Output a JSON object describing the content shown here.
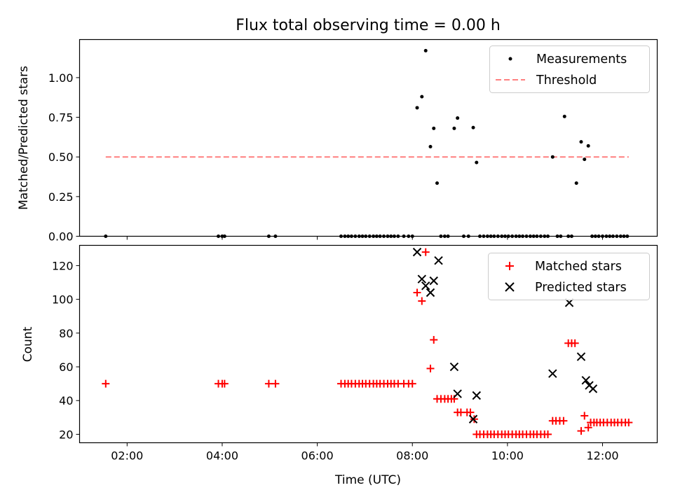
{
  "title": "Flux total observing time = 0.00 h",
  "chart_data": [
    {
      "type": "scatter",
      "ylabel": "Matched/Predicted stars",
      "ylim": [
        0,
        1.24
      ],
      "yticks": [
        0.0,
        0.25,
        0.5,
        0.75,
        1.0
      ],
      "ytick_labels": [
        "0.00",
        "0.25",
        "0.50",
        "0.75",
        "1.00"
      ],
      "xlim": [
        1.0,
        13.15
      ],
      "xticks": [
        2,
        4,
        6,
        8,
        10,
        12
      ],
      "threshold": {
        "name": "Threshold",
        "value": 0.5,
        "x_range": [
          1.55,
          12.55
        ],
        "color": "#ff7f7f"
      },
      "series": [
        {
          "name": "Measurements",
          "color": "#000000",
          "marker": "dot",
          "x": [
            1.55,
            3.92,
            4.0,
            4.05,
            4.98,
            5.12,
            6.5,
            6.58,
            6.65,
            6.72,
            6.8,
            6.88,
            6.95,
            7.02,
            7.1,
            7.18,
            7.25,
            7.32,
            7.4,
            7.48,
            7.55,
            7.62,
            7.7,
            7.82,
            7.92,
            8.0,
            8.1,
            8.2,
            8.28,
            8.38,
            8.45,
            8.52,
            8.6,
            8.68,
            8.75,
            8.88,
            8.95,
            9.08,
            9.18,
            9.28,
            9.35,
            9.42,
            9.5,
            9.58,
            9.65,
            9.72,
            9.8,
            9.88,
            9.95,
            10.02,
            10.1,
            10.18,
            10.25,
            10.32,
            10.4,
            10.48,
            10.55,
            10.62,
            10.7,
            10.78,
            10.85,
            10.95,
            11.05,
            11.12,
            11.2,
            11.28,
            11.35,
            11.45,
            11.55,
            11.62,
            11.7,
            11.78,
            11.85,
            11.92,
            12.0,
            12.08,
            12.15,
            12.22,
            12.3,
            12.38,
            12.45,
            12.52
          ],
          "y": [
            0,
            0,
            0,
            0,
            0,
            0,
            0,
            0,
            0,
            0,
            0,
            0,
            0,
            0,
            0,
            0,
            0,
            0,
            0,
            0,
            0,
            0,
            0,
            0,
            0,
            0,
            0.81,
            0.88,
            1.17,
            0.565,
            0.68,
            0.335,
            0,
            0,
            0,
            0.68,
            0.745,
            0,
            0,
            0.685,
            0.465,
            0,
            0,
            0,
            0,
            0,
            0,
            0,
            0,
            0,
            0,
            0,
            0,
            0,
            0,
            0,
            0,
            0,
            0,
            0,
            0,
            0.5,
            0,
            0,
            0.755,
            0,
            0,
            0.335,
            0.595,
            0.485,
            0.57,
            0,
            0,
            0,
            0,
            0,
            0,
            0,
            0,
            0,
            0,
            0
          ]
        }
      ]
    },
    {
      "type": "scatter",
      "ylabel": "Count",
      "xlabel": "Time (UTC)",
      "ylim": [
        15,
        132
      ],
      "yticks": [
        20,
        40,
        60,
        80,
        100,
        120
      ],
      "xlim": [
        1.0,
        13.15
      ],
      "xticks": [
        2,
        4,
        6,
        8,
        10,
        12
      ],
      "xtick_labels": [
        "02:00",
        "04:00",
        "06:00",
        "08:00",
        "10:00",
        "12:00"
      ],
      "series": [
        {
          "name": "Matched stars",
          "color": "#ff0000",
          "marker": "plus",
          "x": [
            1.55,
            3.92,
            4.0,
            4.05,
            4.98,
            5.12,
            6.5,
            6.58,
            6.65,
            6.72,
            6.8,
            6.88,
            6.95,
            7.02,
            7.1,
            7.18,
            7.25,
            7.32,
            7.4,
            7.48,
            7.55,
            7.62,
            7.7,
            7.82,
            7.92,
            8.0,
            8.1,
            8.2,
            8.28,
            8.38,
            8.45,
            8.52,
            8.6,
            8.68,
            8.75,
            8.82,
            8.88,
            8.95,
            9.02,
            9.15,
            9.22,
            9.3,
            9.35,
            9.42,
            9.5,
            9.58,
            9.65,
            9.72,
            9.8,
            9.88,
            9.95,
            10.02,
            10.1,
            10.18,
            10.25,
            10.32,
            10.4,
            10.48,
            10.55,
            10.62,
            10.7,
            10.78,
            10.85,
            10.95,
            11.02,
            11.1,
            11.18,
            11.28,
            11.35,
            11.42,
            11.55,
            11.62,
            11.7,
            11.75,
            11.82,
            11.88,
            11.95,
            12.02,
            12.1,
            12.18,
            12.25,
            12.32,
            12.4,
            12.48,
            12.55
          ],
          "y": [
            50,
            50,
            50,
            50,
            50,
            50,
            50,
            50,
            50,
            50,
            50,
            50,
            50,
            50,
            50,
            50,
            50,
            50,
            50,
            50,
            50,
            50,
            50,
            50,
            50,
            50,
            104,
            99,
            128,
            59,
            76,
            41,
            41,
            41,
            41,
            41,
            41,
            33,
            33,
            33,
            33,
            29,
            20,
            20,
            20,
            20,
            20,
            20,
            20,
            20,
            20,
            20,
            20,
            20,
            20,
            20,
            20,
            20,
            20,
            20,
            20,
            20,
            20,
            28,
            28,
            28,
            28,
            74,
            74,
            74,
            22,
            31,
            24,
            27,
            27,
            27,
            27,
            27,
            27,
            27,
            27,
            27,
            27,
            27,
            27
          ]
        },
        {
          "name": "Predicted stars",
          "color": "#000000",
          "marker": "x",
          "x": [
            8.1,
            8.2,
            8.28,
            8.38,
            8.45,
            8.55,
            8.88,
            8.95,
            9.28,
            9.35,
            10.95,
            11.3,
            11.55,
            11.65,
            11.72,
            11.8
          ],
          "y": [
            128,
            112,
            108,
            104,
            111,
            123,
            60,
            44,
            29,
            43,
            56,
            98,
            66,
            52,
            49,
            47
          ]
        }
      ]
    }
  ]
}
